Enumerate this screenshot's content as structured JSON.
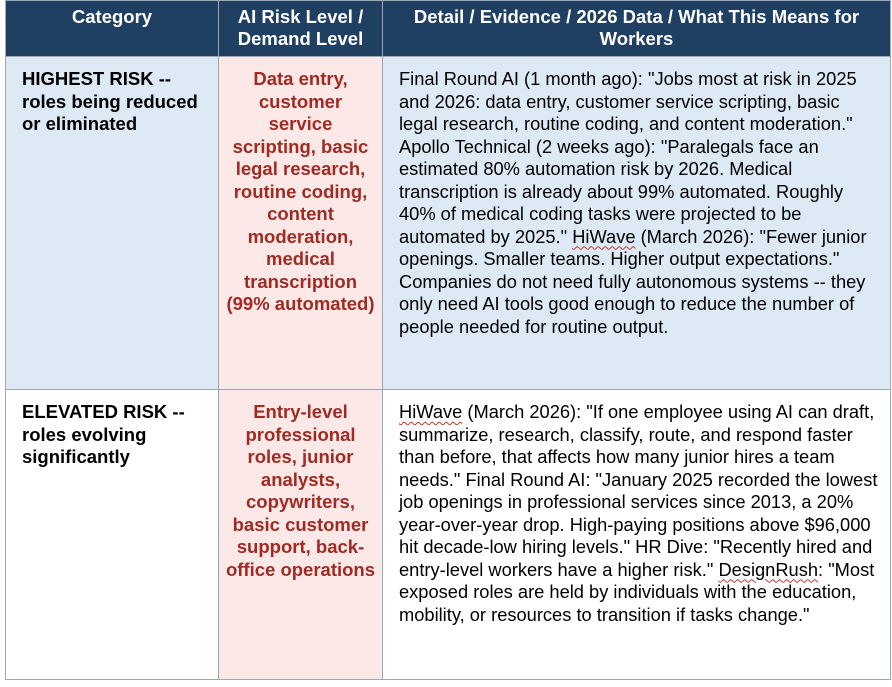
{
  "table": {
    "headers": [
      "Category",
      "AI Risk Level / Demand Level",
      "Detail / Evidence / 2026 Data / What This Means for Workers"
    ],
    "rows": [
      {
        "category": "HIGHEST RISK -- roles being reduced or eliminated",
        "level": "Data entry, customer service scripting, basic legal research, routine coding, content moderation, medical transcription (99% automated)",
        "detail_parts": [
          "Final Round AI (1 month ago): \"Jobs most at risk in 2025 and 2026: data entry, customer service scripting, basic legal research, routine coding, and content moderation.\" Apollo Technical (2 weeks ago): \"Paralegals face an estimated 80% automation risk by 2026. Medical transcription is already about 99% automated. Roughly 40% of medical coding tasks were projected to be automated by 2025.\" ",
          "HiWave",
          " (March 2026): \"Fewer junior openings. Smaller teams. Higher output expectations.\" Companies do not need fully autonomous systems -- they only need AI tools good enough to reduce the number of people needed for routine output."
        ]
      },
      {
        "category": "ELEVATED RISK -- roles evolving significantly",
        "level": "Entry-level professional roles, junior analysts, copywriters, basic customer support, back-office operations",
        "detail_parts": [
          "HiWave",
          " (March 2026): \"If one employee using AI can draft, summarize, research, classify, route, and respond faster than before, that affects how many junior hires a team needs.\" Final Round AI: \"January 2025 recorded the lowest job openings in professional services since 2013, a 20% year-over-year drop. High-paying positions above $96,000 hit decade-low hiring levels.\" HR Dive: \"Recently hired and entry-level workers have a higher risk.\" ",
          "DesignRush",
          ": \"Most exposed roles are held by individuals with the education, mobility, or resources to transition if tasks change.\""
        ]
      }
    ]
  }
}
